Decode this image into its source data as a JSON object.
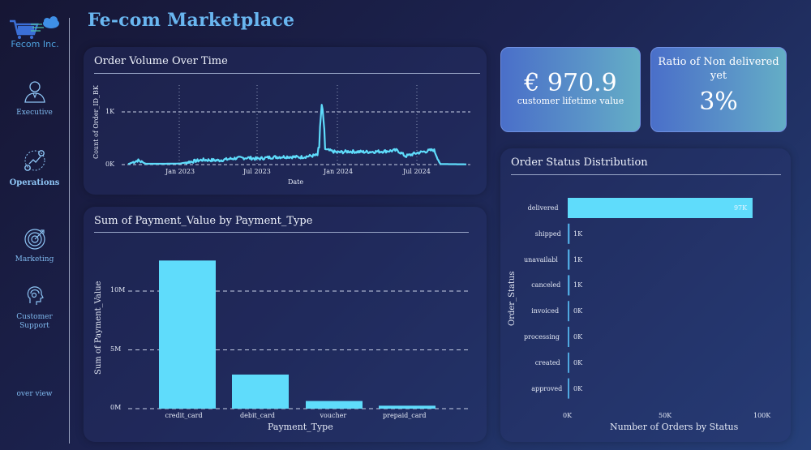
{
  "app": {
    "title": "Fe-com Marketplace",
    "logo_text": "Fecom Inc.",
    "logo_icon": "cart-cloud-icon"
  },
  "sidebar": {
    "items": [
      {
        "label": "Executive",
        "icon": "executive-person-icon",
        "active": false
      },
      {
        "label": "Operations",
        "icon": "operations-gears-icon",
        "active": true
      },
      {
        "label": "Marketing",
        "icon": "target-icon",
        "active": false
      },
      {
        "label": "Customer Support",
        "label_line1": "Customer",
        "label_line2": "Support",
        "icon": "headset-icon",
        "active": false
      },
      {
        "label": "over view",
        "icon": null,
        "active": false
      }
    ]
  },
  "kpis": {
    "clv": {
      "value": "€ 970.9",
      "label": "customer lifetime value"
    },
    "non_delivered": {
      "title_line1": "Ratio of Non delivered",
      "title_line2": "yet",
      "value": "3%"
    }
  },
  "colors": {
    "accent": "#5fdcfb",
    "title": "#69b6f0",
    "kpi_gradient_start": "#4a6fc9",
    "kpi_gradient_end": "#64aec6"
  },
  "chart_data": [
    {
      "type": "line",
      "title": "Order Volume Over Time",
      "xlabel": "Date",
      "ylabel": "Count of Order_ID_BK",
      "x_ticks": [
        "Jan 2023",
        "Jul 2023",
        "Jan 2024",
        "Jul 2024"
      ],
      "y_ticks": [
        "0K",
        "1K"
      ],
      "ylim": [
        0,
        1300
      ],
      "grid": true,
      "series": [
        {
          "name": "Count of Order_ID_BK",
          "x": [
            "2022-09",
            "2022-10",
            "2022-11",
            "2022-12",
            "2023-01",
            "2023-02",
            "2023-03",
            "2023-04",
            "2023-05",
            "2023-06",
            "2023-07",
            "2023-08",
            "2023-09",
            "2023-10",
            "2023-11",
            "2023-11-24",
            "2023-12",
            "2024-01",
            "2024-02",
            "2024-03",
            "2024-04",
            "2024-05",
            "2024-06",
            "2024-07",
            "2024-08",
            "2024-09",
            "2024-10"
          ],
          "values": [
            10,
            80,
            15,
            15,
            20,
            60,
            90,
            80,
            120,
            130,
            110,
            140,
            150,
            140,
            180,
            1190,
            280,
            230,
            250,
            240,
            250,
            270,
            160,
            220,
            280,
            10,
            5
          ]
        }
      ]
    },
    {
      "type": "bar",
      "title": "Sum of Payment_Value by Payment_Type",
      "xlabel": "Payment_Type",
      "ylabel": "Sum of Payment_Value",
      "categories": [
        "credit_card",
        "debit_card",
        "voucher",
        "prepaid_card"
      ],
      "values": [
        12.6,
        2.9,
        0.65,
        0.25
      ],
      "unit": "M",
      "y_ticks": [
        "0M",
        "5M",
        "10M"
      ],
      "ylim": [
        0,
        15
      ],
      "grid": true
    },
    {
      "type": "bar",
      "orientation": "horizontal",
      "title": "Order Status Distribution",
      "xlabel": "Number of Orders by Status",
      "ylabel": "Order_Status",
      "categories": [
        "delivered",
        "shipped",
        "unavailabl",
        "canceled",
        "invoiced",
        "processing",
        "created",
        "approved"
      ],
      "values": [
        97000,
        1000,
        1000,
        1000,
        0,
        0,
        0,
        0
      ],
      "data_labels": [
        "97K",
        "1K",
        "1K",
        "1K",
        "0K",
        "0K",
        "0K",
        "0K"
      ],
      "x_ticks": [
        "0K",
        "50K",
        "100K"
      ],
      "xlim": [
        0,
        100000
      ],
      "grid": false
    }
  ]
}
